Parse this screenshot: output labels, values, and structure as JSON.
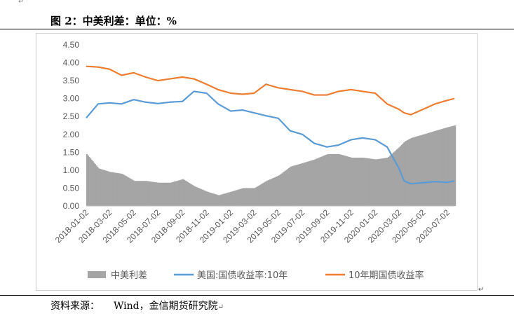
{
  "document": {
    "title": "图 2：中美利差：单位：%",
    "source_label": "资料来源：",
    "source_text": "Wind，金信期货研究院",
    "mark_glyph": "↵"
  },
  "chart_data": {
    "type": "bar+line",
    "title": "",
    "xlabel": "",
    "ylabel": "",
    "ylim": [
      0,
      4.5
    ],
    "yticks": [
      "4.50",
      "4.00",
      "3.50",
      "3.00",
      "2.50",
      "2.00",
      "1.50",
      "1.00",
      "0.50",
      "0.00"
    ],
    "x_tick_labels": [
      "2018-01-02",
      "2018-03-02",
      "2018-05-02",
      "2018-07-02",
      "2018-09-02",
      "2018-11-02",
      "2019-01-02",
      "2019-03-02",
      "2019-05-02",
      "2019-07-02",
      "2019-09-02",
      "2019-11-02",
      "2020-01-02",
      "2020-03-02",
      "2020-05-02",
      "2020-07-02"
    ],
    "grid": false,
    "legend_position": "bottom",
    "x": [
      "2018-01-02",
      "2018-02-01",
      "2018-03-02",
      "2018-04-01",
      "2018-05-02",
      "2018-06-01",
      "2018-07-02",
      "2018-08-01",
      "2018-09-02",
      "2018-10-01",
      "2018-11-02",
      "2018-12-01",
      "2019-01-02",
      "2019-02-01",
      "2019-03-02",
      "2019-04-01",
      "2019-05-02",
      "2019-06-01",
      "2019-07-02",
      "2019-08-01",
      "2019-09-02",
      "2019-10-01",
      "2019-11-02",
      "2019-12-01",
      "2020-01-02",
      "2020-02-01",
      "2020-03-02",
      "2020-03-15",
      "2020-04-01",
      "2020-05-02",
      "2020-06-01",
      "2020-07-02",
      "2020-07-20"
    ],
    "series": [
      {
        "name": "中美利差",
        "type": "area",
        "color": "#a5a5a5",
        "values": [
          1.45,
          1.05,
          0.95,
          0.9,
          0.7,
          0.7,
          0.65,
          0.65,
          0.75,
          0.55,
          0.4,
          0.3,
          0.4,
          0.5,
          0.5,
          0.7,
          0.85,
          1.1,
          1.2,
          1.3,
          1.45,
          1.45,
          1.35,
          1.35,
          1.3,
          1.35,
          1.65,
          1.8,
          1.9,
          2.0,
          2.1,
          2.2,
          2.25
        ]
      },
      {
        "name": "美国:国债收益率:10年",
        "type": "line",
        "color": "#5b9bd5",
        "values": [
          2.46,
          2.85,
          2.88,
          2.85,
          2.97,
          2.9,
          2.86,
          2.9,
          2.92,
          3.2,
          3.15,
          2.85,
          2.65,
          2.68,
          2.6,
          2.52,
          2.45,
          2.1,
          2.0,
          1.75,
          1.65,
          1.7,
          1.85,
          1.9,
          1.85,
          1.65,
          1.05,
          0.7,
          0.62,
          0.65,
          0.68,
          0.66,
          0.7
        ]
      },
      {
        "name": "10年期国债收益率",
        "type": "line",
        "color": "#ed7d31",
        "values": [
          3.9,
          3.88,
          3.82,
          3.65,
          3.72,
          3.6,
          3.5,
          3.55,
          3.6,
          3.55,
          3.4,
          3.25,
          3.15,
          3.12,
          3.15,
          3.4,
          3.3,
          3.25,
          3.2,
          3.1,
          3.1,
          3.2,
          3.25,
          3.2,
          3.15,
          2.85,
          2.7,
          2.6,
          2.55,
          2.7,
          2.85,
          2.95,
          3.0
        ]
      }
    ]
  }
}
